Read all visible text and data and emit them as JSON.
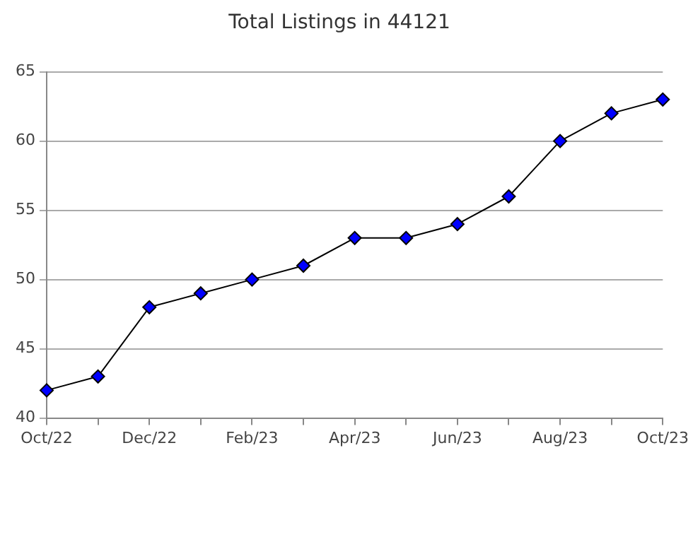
{
  "chart_data": {
    "type": "line",
    "title": "Total Listings in 44121",
    "categories": [
      "Oct/22",
      null,
      "Dec/22",
      null,
      "Feb/23",
      null,
      "Apr/23",
      null,
      "Jun/23",
      null,
      "Aug/23",
      null,
      "Oct/23"
    ],
    "series": [
      {
        "color": "#0000ff",
        "values": [
          42,
          43,
          48,
          49,
          50,
          51,
          53,
          53,
          54,
          56,
          60,
          62,
          63
        ]
      }
    ],
    "ylim": [
      40,
      65
    ],
    "yticks": [
      40,
      45,
      50,
      55,
      60,
      65
    ],
    "grid": "y",
    "legend": false,
    "marker": "diamond",
    "line_style": "solid"
  }
}
